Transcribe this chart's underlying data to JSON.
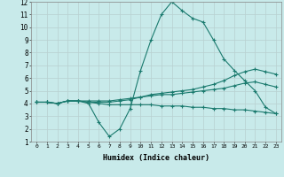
{
  "xlabel": "Humidex (Indice chaleur)",
  "xlim": [
    -0.5,
    23.5
  ],
  "ylim": [
    1,
    12
  ],
  "xticks": [
    0,
    1,
    2,
    3,
    4,
    5,
    6,
    7,
    8,
    9,
    10,
    11,
    12,
    13,
    14,
    15,
    16,
    17,
    18,
    19,
    20,
    21,
    22,
    23
  ],
  "yticks": [
    1,
    2,
    3,
    4,
    5,
    6,
    7,
    8,
    9,
    10,
    11,
    12
  ],
  "background_color": "#c8eaea",
  "grid_color": "#b8d0d0",
  "line_color": "#1a7a6e",
  "series": [
    {
      "x": [
        0,
        1,
        2,
        3,
        4,
        5,
        6,
        7,
        8,
        9,
        10,
        11,
        12,
        13,
        14,
        15,
        16,
        17,
        18,
        19,
        20,
        21,
        22,
        23
      ],
      "y": [
        4.1,
        4.1,
        4.0,
        4.2,
        4.2,
        4.0,
        2.5,
        1.4,
        2.0,
        3.6,
        6.6,
        9.0,
        11.0,
        12.0,
        11.3,
        10.7,
        10.4,
        9.0,
        7.5,
        6.6,
        5.8,
        5.0,
        3.7,
        3.2
      ]
    },
    {
      "x": [
        0,
        1,
        2,
        3,
        4,
        5,
        6,
        7,
        8,
        9,
        10,
        11,
        12,
        13,
        14,
        15,
        16,
        17,
        18,
        19,
        20,
        21,
        22,
        23
      ],
      "y": [
        4.1,
        4.1,
        4.0,
        4.2,
        4.2,
        4.1,
        4.1,
        4.1,
        4.2,
        4.3,
        4.5,
        4.7,
        4.8,
        4.9,
        5.0,
        5.1,
        5.3,
        5.5,
        5.8,
        6.2,
        6.5,
        6.7,
        6.5,
        6.3
      ]
    },
    {
      "x": [
        0,
        1,
        2,
        3,
        4,
        5,
        6,
        7,
        8,
        9,
        10,
        11,
        12,
        13,
        14,
        15,
        16,
        17,
        18,
        19,
        20,
        21,
        22,
        23
      ],
      "y": [
        4.1,
        4.1,
        4.0,
        4.2,
        4.2,
        4.2,
        4.2,
        4.2,
        4.3,
        4.4,
        4.5,
        4.6,
        4.7,
        4.7,
        4.8,
        4.9,
        5.0,
        5.1,
        5.2,
        5.4,
        5.6,
        5.7,
        5.5,
        5.3
      ]
    },
    {
      "x": [
        0,
        1,
        2,
        3,
        4,
        5,
        6,
        7,
        8,
        9,
        10,
        11,
        12,
        13,
        14,
        15,
        16,
        17,
        18,
        19,
        20,
        21,
        22,
        23
      ],
      "y": [
        4.1,
        4.1,
        4.0,
        4.2,
        4.2,
        4.1,
        4.0,
        3.9,
        3.9,
        3.9,
        3.9,
        3.9,
        3.8,
        3.8,
        3.8,
        3.7,
        3.7,
        3.6,
        3.6,
        3.5,
        3.5,
        3.4,
        3.3,
        3.2
      ]
    }
  ]
}
